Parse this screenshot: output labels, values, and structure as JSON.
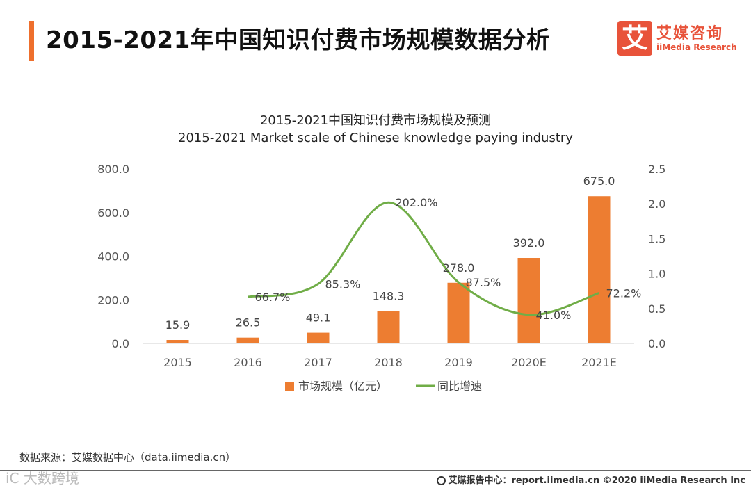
{
  "page": {
    "title": "2015-2021年中国知识付费市场规模数据分析"
  },
  "logo": {
    "mark": "艾",
    "name_cn": "艾媒咨询",
    "name_en": "iiMedia Research"
  },
  "chart_data": {
    "type": "bar+line",
    "title": "2015-2021中国知识付费市场规模及预测",
    "subtitle": "2015-2021 Market scale of Chinese knowledge paying industry",
    "categories": [
      "2015",
      "2016",
      "2017",
      "2018",
      "2019",
      "2020E",
      "2021E"
    ],
    "series": [
      {
        "name": "市场规模（亿元）",
        "type": "bar",
        "axis": "left",
        "color": "#ed7d31",
        "values": [
          15.9,
          26.5,
          49.1,
          148.3,
          278.0,
          392.0,
          675.0
        ],
        "labels": [
          "15.9",
          "26.5",
          "49.1",
          "148.3",
          "278.0",
          "392.0",
          "675.0"
        ]
      },
      {
        "name": "同比增速",
        "type": "line",
        "axis": "right",
        "color": "#70ad47",
        "values": [
          null,
          0.667,
          0.853,
          2.02,
          0.875,
          0.41,
          0.722
        ],
        "labels": [
          "",
          "66.7%",
          "85.3%",
          "202.0%",
          "87.5%",
          "41.0%",
          "72.2%"
        ]
      }
    ],
    "y_left": {
      "min": 0,
      "max": 800,
      "ticks": [
        "0.0",
        "200.0",
        "400.0",
        "600.0",
        "800.0"
      ]
    },
    "y_right": {
      "min": 0,
      "max": 2.5,
      "ticks": [
        "0.0",
        "0.5",
        "1.0",
        "1.5",
        "2.0",
        "2.5"
      ]
    },
    "legend": "bottom-center"
  },
  "source": {
    "text": "数据来源：艾媒数据中心（data.iimedia.cn）"
  },
  "watermark": {
    "text": "iC 大数跨境"
  },
  "footer": {
    "text": "艾媒报告中心：report.iimedia.cn  ©2020  iiMedia Research  Inc"
  }
}
